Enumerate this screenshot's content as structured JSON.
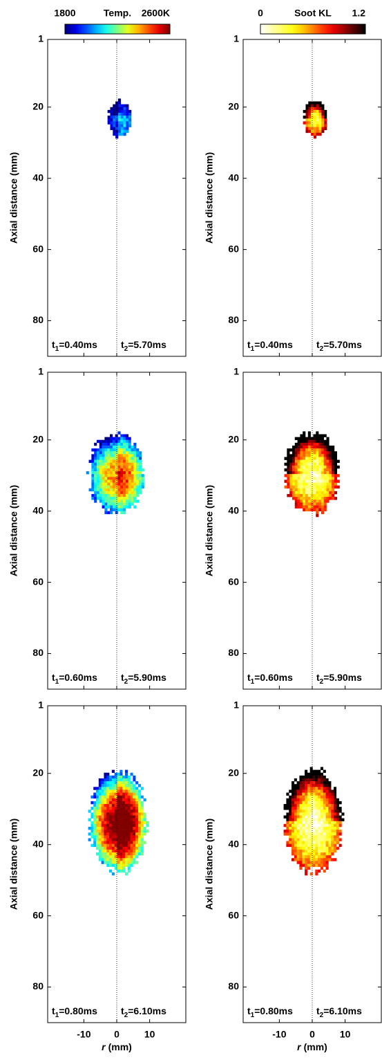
{
  "chart_data": [
    {
      "type": "heatmap",
      "colormap": "jet",
      "ylabel": "Axial distance (mm)",
      "ylim": [
        1,
        90
      ],
      "yticks": [
        1,
        20,
        40,
        60,
        80
      ],
      "xlim": [
        -21,
        21
      ],
      "xticks": [
        -10,
        0,
        10
      ],
      "colorbar": {
        "label": "Temp.",
        "lim": [
          1800,
          2600
        ],
        "ticks": [
          1800,
          {
            "value": 2600,
            "label": "2600K"
          }
        ]
      },
      "annotation": [
        {
          "text": "t",
          "sub": "1",
          "rest": "=0.40ms"
        },
        {
          "text": "t",
          "sub": "2",
          "rest": "=5.70ms"
        }
      ]
    },
    {
      "type": "heatmap",
      "colormap": "hot-reversed",
      "ylabel": "Axial distance (mm)",
      "ylim": [
        1,
        90
      ],
      "yticks": [
        1,
        20,
        40,
        60,
        80
      ],
      "xlim": [
        -21,
        21
      ],
      "xticks": [
        -10,
        0,
        10
      ],
      "colorbar": {
        "label": "Soot KL",
        "lim": [
          0,
          1.2
        ],
        "ticks": [
          0,
          1.2
        ]
      },
      "annotation": [
        {
          "text": "t",
          "sub": "1",
          "rest": "=0.40ms"
        },
        {
          "text": "t",
          "sub": "2",
          "rest": "=5.70ms"
        }
      ]
    },
    {
      "type": "heatmap",
      "colormap": "jet",
      "ylabel": "Axial distance (mm)",
      "ylim": [
        1,
        90
      ],
      "yticks": [
        1,
        20,
        40,
        60,
        80
      ],
      "xlim": [
        -21,
        21
      ],
      "xticks": [
        -10,
        0,
        10
      ],
      "annotation": [
        {
          "text": "t",
          "sub": "1",
          "rest": "=0.60ms"
        },
        {
          "text": "t",
          "sub": "2",
          "rest": "=5.90ms"
        }
      ]
    },
    {
      "type": "heatmap",
      "colormap": "hot-reversed",
      "ylabel": "Axial distance (mm)",
      "ylim": [
        1,
        90
      ],
      "yticks": [
        1,
        20,
        40,
        60,
        80
      ],
      "xlim": [
        -21,
        21
      ],
      "xticks": [
        -10,
        0,
        10
      ],
      "annotation": [
        {
          "text": "t",
          "sub": "1",
          "rest": "=0.60ms"
        },
        {
          "text": "t",
          "sub": "2",
          "rest": "=5.90ms"
        }
      ]
    },
    {
      "type": "heatmap",
      "colormap": "jet",
      "ylabel": "Axial distance (mm)",
      "ylim": [
        1,
        90
      ],
      "yticks": [
        1,
        20,
        40,
        60,
        80
      ],
      "xlim": [
        -21,
        21
      ],
      "xticks": [
        -10,
        0,
        10
      ],
      "xlabel": {
        "var": "r",
        "unit": "(mm)"
      },
      "annotation": [
        {
          "text": "t",
          "sub": "1",
          "rest": "=0.80ms"
        },
        {
          "text": "t",
          "sub": "2",
          "rest": "=6.10ms"
        }
      ]
    },
    {
      "type": "heatmap",
      "colormap": "hot-reversed",
      "ylabel": "Axial distance (mm)",
      "ylim": [
        1,
        90
      ],
      "yticks": [
        1,
        20,
        40,
        60,
        80
      ],
      "xlim": [
        -21,
        21
      ],
      "xticks": [
        -10,
        0,
        10
      ],
      "xlabel": {
        "var": "r",
        "unit": "(mm)"
      },
      "annotation": [
        {
          "text": "t",
          "sub": "1",
          "rest": "=0.80ms"
        },
        {
          "text": "t",
          "sub": "2",
          "rest": "=6.10ms"
        }
      ]
    }
  ]
}
